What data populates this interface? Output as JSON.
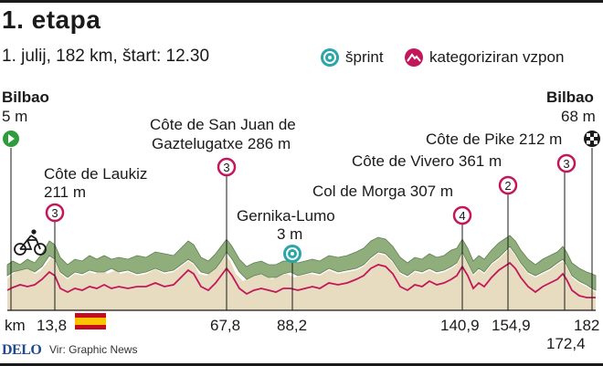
{
  "title": "1. etapa",
  "subtitle": "1. julij, 182 km, štart: 12.30",
  "legend": {
    "sprint": "šprint",
    "climb": "kategoriziran vzpon"
  },
  "start": {
    "city": "Bilbao",
    "elevation": "5 m"
  },
  "finish": {
    "city": "Bilbao",
    "elevation": "68 m"
  },
  "climbs": [
    {
      "name": "Côte de Laukiz",
      "elevation": "211 m",
      "category": "3",
      "km": "13,8"
    },
    {
      "name": "Côte de San Juan de",
      "name2": "Gaztelugatxe 286 m",
      "category": "3",
      "km": "67,8"
    },
    {
      "name": "Col de Morga 307 m",
      "category": "4",
      "km": "140,9"
    },
    {
      "name": "Côte de Vivero 361 m",
      "category": "2",
      "km": "154,9"
    },
    {
      "name": "Côte de Pike 212 m",
      "category": "3",
      "km": "172,4"
    }
  ],
  "sprint": {
    "name": "Gernika-Lumo",
    "elevation": "3 m",
    "km": "88,2"
  },
  "km_axis": {
    "unit": "km",
    "end": "182"
  },
  "footer": {
    "brand": "DELO",
    "source": "Vir: Graphic News"
  },
  "colors": {
    "profile_fill": "#e8dcc0",
    "profile_line": "#c2185b",
    "ridge": "#7a9a6a",
    "sprint": "#2aa6a8",
    "climb": "#c2185b",
    "start": "#2e9b3c"
  }
}
